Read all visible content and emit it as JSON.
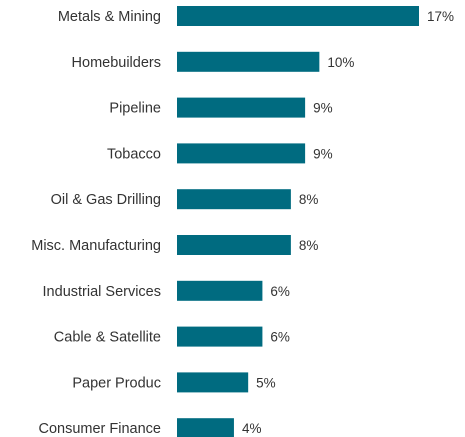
{
  "chart_data": {
    "type": "bar",
    "orientation": "horizontal",
    "categories": [
      "Metals & Mining",
      "Homebuilders",
      "Pipeline",
      "Tobacco",
      "Oil & Gas Drilling",
      "Misc. Manufacturing",
      "Industrial Services",
      "Cable & Satellite",
      "Paper Produc",
      "Consumer Finance"
    ],
    "values": [
      17,
      10,
      9,
      9,
      8,
      8,
      6,
      6,
      5,
      4
    ],
    "value_labels": [
      "17%",
      "10%",
      "9%",
      "9%",
      "8%",
      "8%",
      "6%",
      "6%",
      "5%",
      "4%"
    ],
    "unit": "%",
    "xlim": [
      0,
      17
    ],
    "grid": false,
    "legend": "none",
    "bar_color": "#006b80"
  }
}
